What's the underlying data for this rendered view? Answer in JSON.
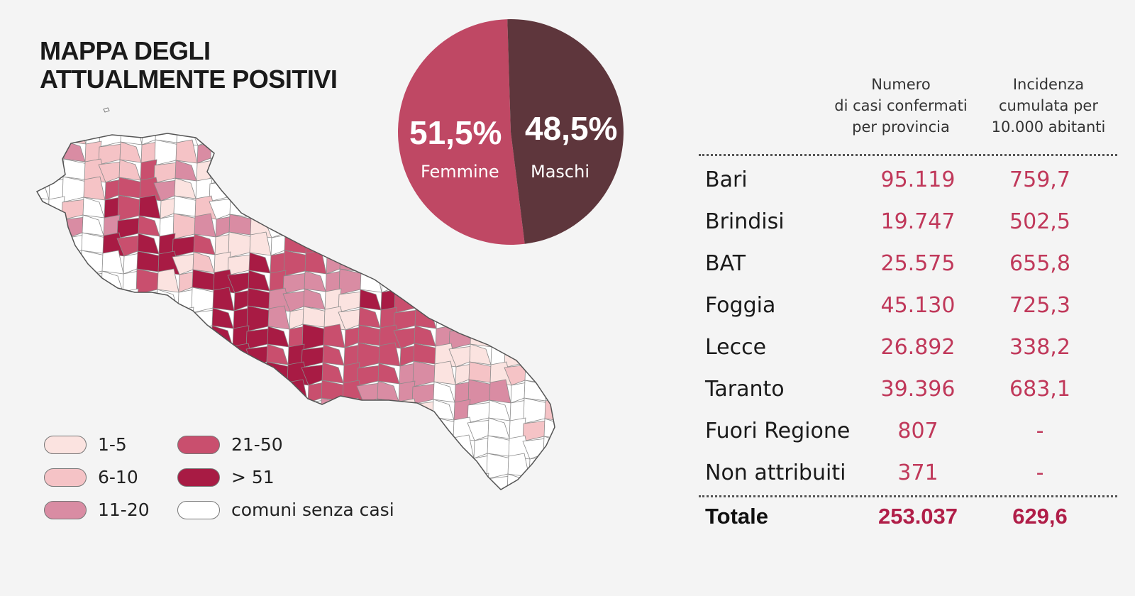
{
  "title": {
    "line1": "MAPPA DEGLI",
    "line2": "ATTUALMENTE POSITIVI"
  },
  "colors": {
    "class_1_5": "#fbe3e0",
    "class_6_10": "#f5c3c6",
    "class_11_20": "#d98ca3",
    "class_21_50": "#c94f6e",
    "class_51_plus": "#a81b44",
    "no_cases": "#ffffff",
    "female": "#bf4864",
    "male": "#5e363c",
    "value_text": "#c0385a"
  },
  "legend": [
    {
      "label": "1-5",
      "color": "#fbe3e0"
    },
    {
      "label": "6-10",
      "color": "#f5c3c6"
    },
    {
      "label": "11-20",
      "color": "#d98ca3"
    },
    {
      "label": "21-50",
      "color": "#c94f6e"
    },
    {
      "label": "> 51",
      "color": "#a81b44"
    },
    {
      "label": "comuni senza casi",
      "color": "#ffffff"
    }
  ],
  "chart_data": [
    {
      "type": "pie",
      "slices": [
        {
          "label": "Femmine",
          "value": 51.5,
          "display": "51,5%",
          "color": "#bf4864"
        },
        {
          "label": "Maschi",
          "value": 48.5,
          "display": "48,5%",
          "color": "#5e363c"
        }
      ]
    },
    {
      "type": "table",
      "columns": [
        "",
        "Numero di casi confermati per provincia",
        "Incidenza cumulata per 10.000 abitanti"
      ],
      "rows": [
        {
          "name": "Bari",
          "cases": "95.119",
          "incidence": "759,7"
        },
        {
          "name": "Brindisi",
          "cases": "19.747",
          "incidence": "502,5"
        },
        {
          "name": "BAT",
          "cases": "25.575",
          "incidence": "655,8"
        },
        {
          "name": "Foggia",
          "cases": "45.130",
          "incidence": "725,3"
        },
        {
          "name": "Lecce",
          "cases": "26.892",
          "incidence": "338,2"
        },
        {
          "name": "Taranto",
          "cases": "39.396",
          "incidence": "683,1"
        },
        {
          "name": "Fuori Regione",
          "cases": "807",
          "incidence": "-"
        },
        {
          "name": "Non attribuiti",
          "cases": "371",
          "incidence": "-"
        }
      ],
      "total": {
        "name": "Totale",
        "cases": "253.037",
        "incidence": "629,6"
      }
    }
  ],
  "table_headers": {
    "cases_line1": "Numero",
    "cases_line2": "di casi confermati",
    "cases_line3": "per provincia",
    "incidence_line1": "Incidenza",
    "incidence_line2": "cumulata per",
    "incidence_line3": "10.000 abitanti"
  }
}
